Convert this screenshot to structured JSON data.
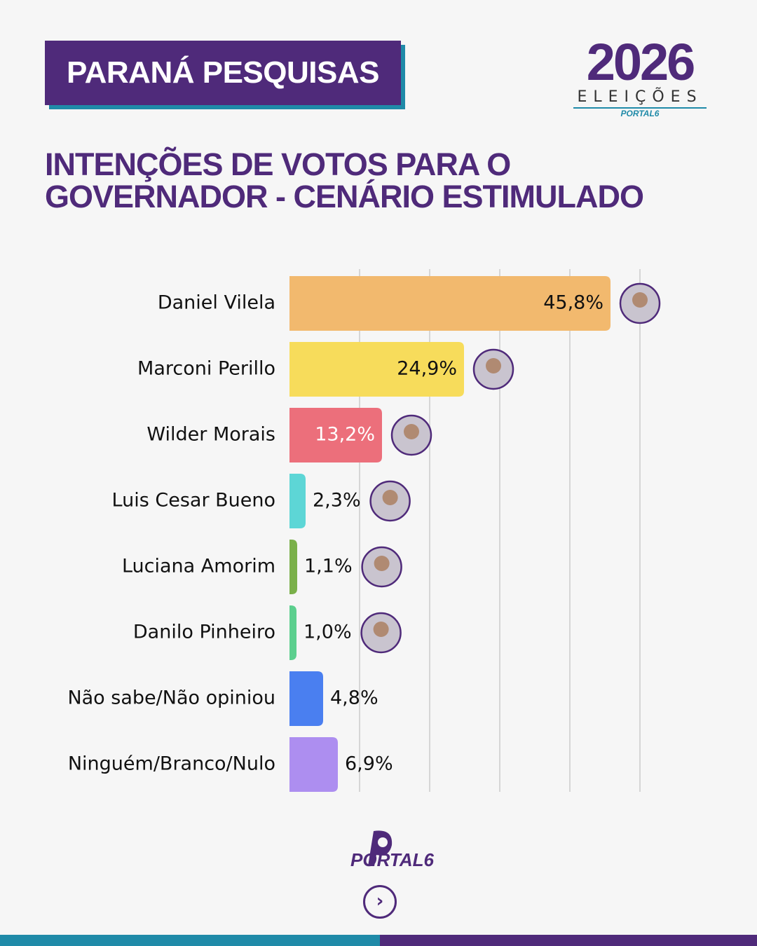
{
  "header": {
    "badge": "PARANÁ PESQUISAS",
    "logo_year": "2026",
    "logo_subtitle": "ELEIÇÕES",
    "logo_brand": "PORTAL6"
  },
  "chart_data": {
    "type": "bar",
    "orientation": "horizontal",
    "title": "INTENÇÕES DE VOTOS PARA O GOVERNADOR - CENÁRIO ESTIMULADO",
    "categories": [
      "Daniel Vilela",
      "Marconi Perillo",
      "Wilder Morais",
      "Luis Cesar Bueno",
      "Luciana Amorim",
      "Danilo Pinheiro",
      "Não sabe/Não opiniou",
      "Ninguém/Branco/Nulo"
    ],
    "values": [
      45.8,
      24.9,
      13.2,
      2.3,
      1.1,
      1.0,
      4.8,
      6.9
    ],
    "value_labels": [
      "45,8%",
      "24,9%",
      "13,2%",
      "2,3%",
      "1,1%",
      "1,0%",
      "4,8%",
      "6,9%"
    ],
    "colors": [
      "#f2b96e",
      "#f7dc5b",
      "#ec6f7b",
      "#5dd6d6",
      "#7ab04a",
      "#5ccf8e",
      "#4a7ff0",
      "#ad8ef0"
    ],
    "xlim": [
      0,
      50
    ],
    "xticks": [
      10,
      20,
      30,
      40,
      50
    ],
    "grid": true
  },
  "footer": {
    "brand": "PORTAL6"
  }
}
